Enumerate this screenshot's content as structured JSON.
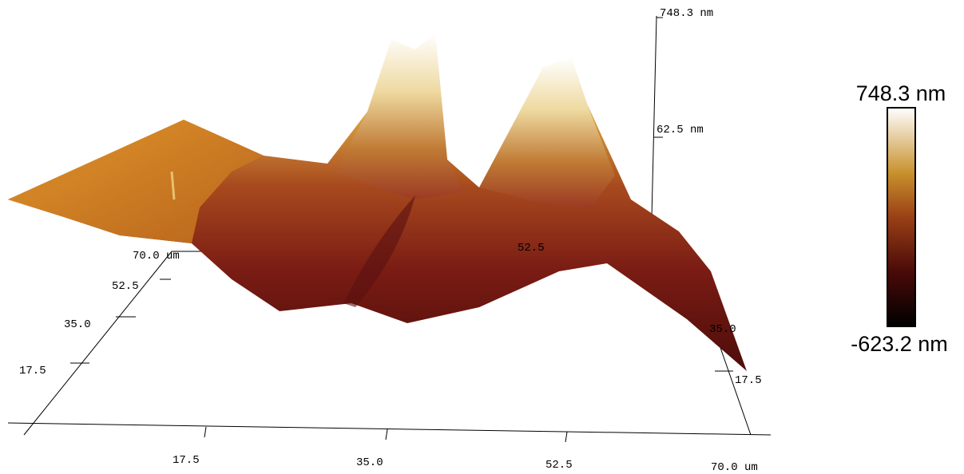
{
  "z_axis": {
    "labels": [
      "748.3 nm",
      "62.5 nm"
    ]
  },
  "y_axis_left": {
    "labels": [
      "70.0 um",
      "52.5",
      "35.0",
      "17.5"
    ]
  },
  "x_axis": {
    "labels": [
      "17.5",
      "35.0",
      "52.5",
      "70.0 um"
    ]
  },
  "y_axis_right": {
    "labels": [
      "52.5",
      "35.0",
      "17.5"
    ]
  },
  "colorbar": {
    "max": "748.3 nm",
    "min": "-623.2 nm"
  }
}
